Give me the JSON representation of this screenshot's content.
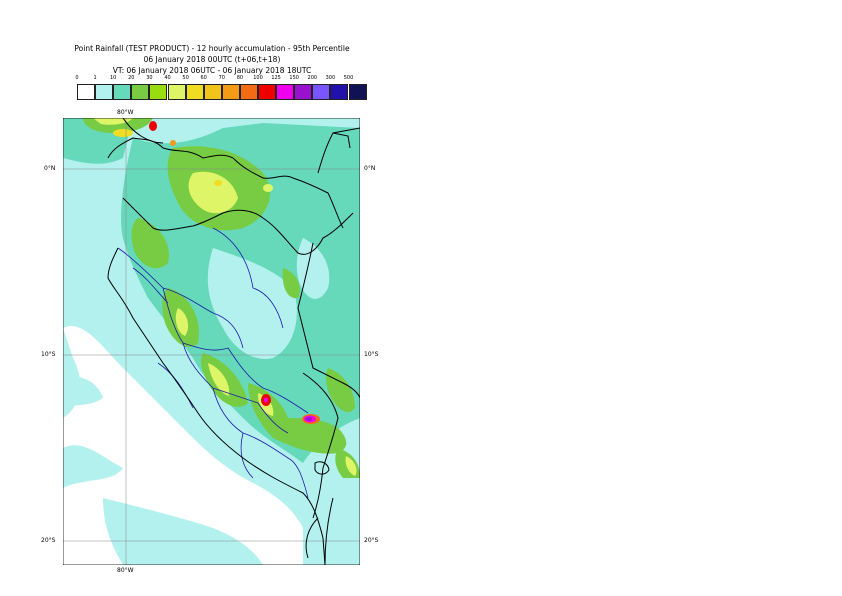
{
  "header": {
    "title": "Point Rainfall (TEST PRODUCT) - 12 hourly accumulation - 95th Percentile",
    "base_time": "06 January 2018 00UTC (t+06,t+18)",
    "valid_time": "VT: 06 January 2018 06UTC - 06 January 2018 18UTC"
  },
  "legend": {
    "thresholds": [
      "0",
      "1",
      "10",
      "20",
      "30",
      "40",
      "50",
      "60",
      "70",
      "80",
      "100",
      "125",
      "150",
      "200",
      "300",
      "500"
    ],
    "colors": [
      "#ffffff",
      "#b3f1ef",
      "#66d9bb",
      "#77cc44",
      "#99dd11",
      "#ddf566",
      "#eedd22",
      "#f2c31a",
      "#f59a17",
      "#f36c13",
      "#ee0000",
      "#ee00ee",
      "#9911cc",
      "#7755ff",
      "#2211aa",
      "#111155"
    ]
  },
  "map": {
    "lat_labels_left": [
      "0°N",
      "10°S",
      "20°S"
    ],
    "lat_labels_right": [
      "0°N",
      "10°S",
      "20°S"
    ],
    "lon_label_top": "80°W",
    "lon_label_bottom": "80°W",
    "region": "Peru"
  }
}
